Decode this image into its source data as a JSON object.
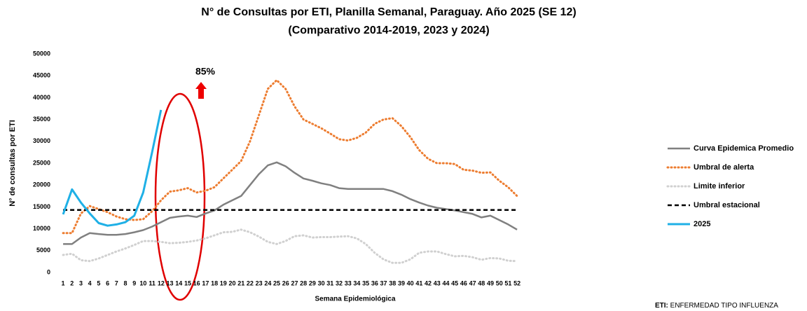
{
  "chart_data": {
    "type": "line",
    "title": "N° de Consultas por ETI, Planilla Semanal, Paraguay. Año 2025  (SE 12)",
    "subtitle": "(Comparativo 2014-2019, 2023 y 2024)",
    "x_label": "Semana Epidemiológica",
    "y_label": "N° de consultas por ETI",
    "annotation": "85%",
    "footnote_label": "ETI:",
    "footnote_text": " ENFERMEDAD TIPO INFLUENZA",
    "categories": [
      "1",
      "2",
      "3",
      "4",
      "5",
      "6",
      "7",
      "8",
      "9",
      "10",
      "11",
      "12",
      "13",
      "14",
      "15",
      "16",
      "17",
      "18",
      "19",
      "20",
      "21",
      "22",
      "23",
      "24",
      "25",
      "26",
      "27",
      "28",
      "29",
      "30",
      "31",
      "32",
      "33",
      "34",
      "35",
      "36",
      "37",
      "38",
      "39",
      "40",
      "41",
      "42",
      "43",
      "44",
      "45",
      "46",
      "47",
      "48",
      "49",
      "50",
      "51",
      "52"
    ],
    "ylim": [
      0,
      50000
    ],
    "yticks": [
      0,
      5000,
      10000,
      15000,
      20000,
      25000,
      30000,
      35000,
      40000,
      45000,
      50000
    ],
    "grid": false,
    "legend": "right",
    "series": [
      {
        "name": "Curva Epidemica Promedio",
        "color": "#808080",
        "style": "solid",
        "width": 2.5,
        "values": [
          6500,
          6500,
          8000,
          9000,
          8800,
          8600,
          8600,
          8800,
          9200,
          9700,
          10500,
          11500,
          12500,
          12800,
          13000,
          12700,
          13500,
          14200,
          15500,
          16500,
          17500,
          20000,
          22500,
          24500,
          25200,
          24300,
          22800,
          21500,
          21000,
          20400,
          20000,
          19300,
          19100,
          19100,
          19100,
          19100,
          19100,
          18600,
          17800,
          16800,
          16000,
          15300,
          14800,
          14500,
          14200,
          13800,
          13400,
          12600,
          13000,
          12000,
          11000,
          9800
        ]
      },
      {
        "name": "Umbral de alerta",
        "color": "#ed7d31",
        "style": "dotted",
        "width": 3,
        "values": [
          9000,
          9000,
          13500,
          15200,
          14500,
          13800,
          12800,
          12200,
          12000,
          12200,
          14000,
          16500,
          18500,
          18800,
          19300,
          18300,
          18700,
          19500,
          21500,
          23500,
          25500,
          30000,
          36000,
          42000,
          44000,
          42000,
          38000,
          35000,
          34000,
          33000,
          31800,
          30500,
          30200,
          30800,
          32000,
          34000,
          35000,
          35300,
          33500,
          31000,
          28000,
          26000,
          25000,
          25000,
          24800,
          23500,
          23300,
          22800,
          22900,
          21000,
          19500,
          17500
        ]
      },
      {
        "name": "Limite inferior",
        "color": "#d0d0d0",
        "style": "dotted",
        "width": 3,
        "values": [
          4000,
          4300,
          2800,
          2600,
          3200,
          4000,
          4800,
          5500,
          6300,
          7200,
          7200,
          7000,
          6700,
          6800,
          7000,
          7300,
          7800,
          8500,
          9200,
          9300,
          9800,
          9200,
          8200,
          7000,
          6500,
          7200,
          8300,
          8500,
          8000,
          8100,
          8100,
          8200,
          8300,
          7800,
          6500,
          4500,
          3000,
          2200,
          2200,
          3000,
          4500,
          4800,
          4800,
          4200,
          3700,
          3800,
          3500,
          2900,
          3300,
          3200,
          2700,
          2600
        ]
      },
      {
        "name": "Umbral estacional",
        "color": "#000000",
        "style": "dashed",
        "width": 2.5,
        "values": [
          14300,
          14300,
          14300,
          14300,
          14300,
          14300,
          14300,
          14300,
          14300,
          14300,
          14300,
          14300,
          14300,
          14300,
          14300,
          14300,
          14300,
          14300,
          14300,
          14300,
          14300,
          14300,
          14300,
          14300,
          14300,
          14300,
          14300,
          14300,
          14300,
          14300,
          14300,
          14300,
          14300,
          14300,
          14300,
          14300,
          14300,
          14300,
          14300,
          14300,
          14300,
          14300,
          14300,
          14300,
          14300,
          14300,
          14300,
          14300,
          14300,
          14300,
          14300,
          14300
        ]
      },
      {
        "name": "2025",
        "color": "#1fb0e6",
        "style": "solid",
        "width": 3,
        "values": [
          13300,
          19000,
          16000,
          13500,
          11300,
          10700,
          11000,
          11500,
          13000,
          18300,
          27500,
          37200,
          null,
          null,
          null,
          null,
          null,
          null,
          null,
          null,
          null,
          null,
          null,
          null,
          null,
          null,
          null,
          null,
          null,
          null,
          null,
          null,
          null,
          null,
          null,
          null,
          null,
          null,
          null,
          null,
          null,
          null,
          null,
          null,
          null,
          null,
          null,
          null,
          null,
          null,
          null,
          null
        ]
      }
    ]
  }
}
